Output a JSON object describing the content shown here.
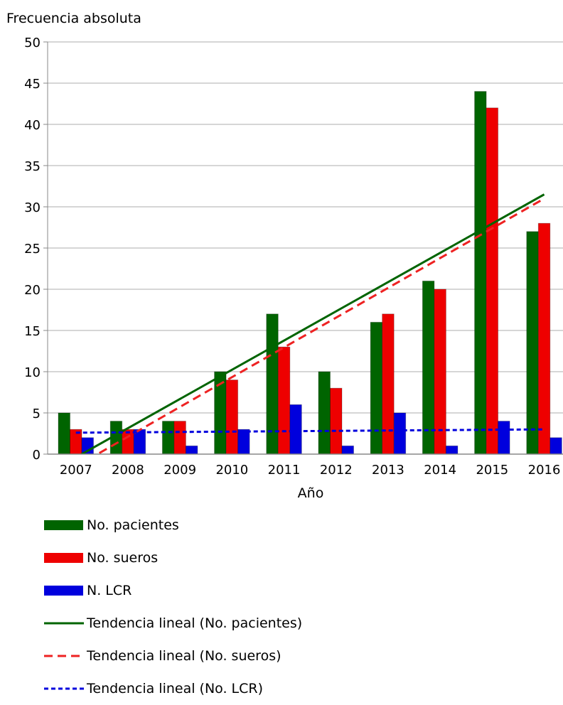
{
  "chart_data": {
    "type": "bar",
    "title": "",
    "ylabel": "Frecuencia absoluta",
    "xlabel": "Año",
    "ylim": [
      0,
      50
    ],
    "yticks": [
      0,
      5,
      10,
      15,
      20,
      25,
      30,
      35,
      40,
      45,
      50
    ],
    "grid": true,
    "legend_position": "bottom",
    "categories": [
      "2007",
      "2008",
      "2009",
      "2010",
      "2011",
      "2012",
      "2013",
      "2014",
      "2015",
      "2016"
    ],
    "series": [
      {
        "name": "No. pacientes",
        "color": "#006400",
        "values": [
          5,
          4,
          4,
          10,
          17,
          10,
          16,
          21,
          44,
          27
        ]
      },
      {
        "name": "No. sueros",
        "color": "#ee0000",
        "values": [
          3,
          3,
          4,
          9,
          13,
          8,
          17,
          20,
          42,
          28
        ]
      },
      {
        "name": "N. LCR",
        "color": "#0000dd",
        "values": [
          2,
          3,
          1,
          3,
          6,
          1,
          5,
          1,
          4,
          2
        ]
      }
    ],
    "trendlines": [
      {
        "name": "Tendencia lineal (No. pacientes)",
        "color": "#006400",
        "style": "solid",
        "start": [
          2007,
          -0.4
        ],
        "end": [
          2016,
          31.5
        ]
      },
      {
        "name": "Tendencia lineal (No. sueros)",
        "color": "#ee2222",
        "style": "dashed",
        "start": [
          2007,
          -1.5
        ],
        "end": [
          2016,
          31.0
        ]
      },
      {
        "name": "Tendencia lineal (No. LCR)",
        "color": "#0000dd",
        "style": "dotted",
        "start": [
          2007,
          2.6
        ],
        "end": [
          2016,
          3.0
        ]
      }
    ]
  }
}
